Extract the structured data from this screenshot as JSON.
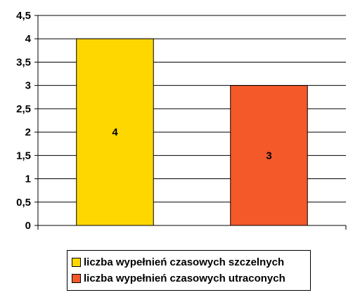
{
  "chart_data": {
    "type": "bar",
    "categories": [
      ""
    ],
    "series": [
      {
        "name": "liczba wypełnień czasowych szczelnych",
        "values": [
          4
        ],
        "color": "#FFD700"
      },
      {
        "name": "liczba wypełnień czasowych utraconych",
        "values": [
          3
        ],
        "color": "#F4592A"
      }
    ],
    "data_labels": [
      "4",
      "3"
    ],
    "y_ticks": [
      "0",
      "0,5",
      "1",
      "1,5",
      "2",
      "2,5",
      "3",
      "3,5",
      "4",
      "4,5"
    ],
    "ylim": [
      0,
      4.5
    ],
    "grid": true,
    "legend_position": "bottom",
    "title": "",
    "xlabel": "",
    "ylabel": ""
  }
}
